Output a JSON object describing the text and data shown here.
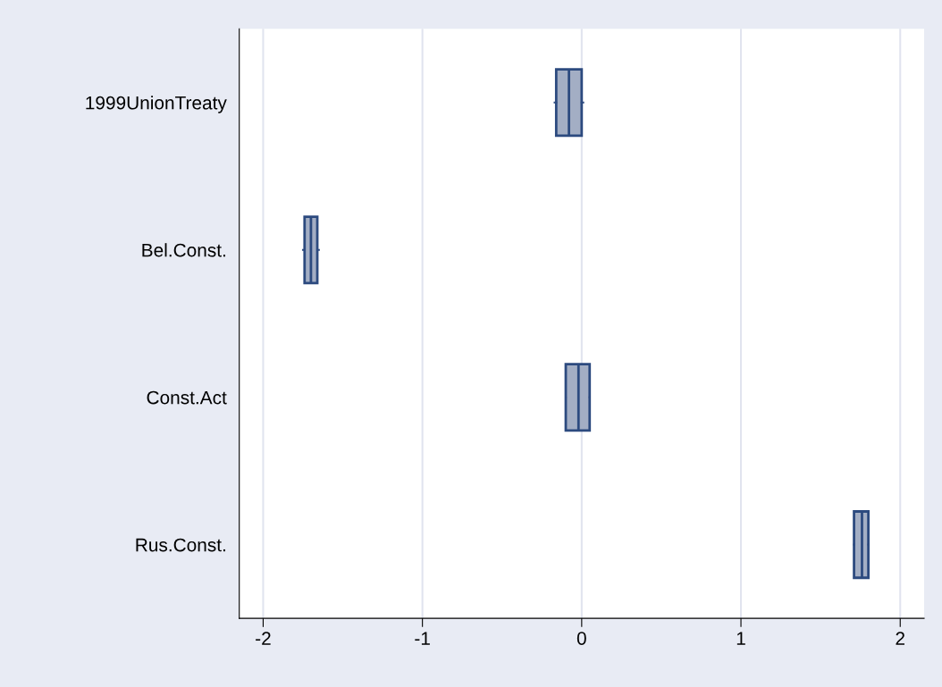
{
  "chart_data": {
    "type": "box",
    "orientation": "horizontal",
    "categories": [
      "1999UnionTreaty",
      "Bel.Const.",
      "Const.Act",
      "Rus.Const."
    ],
    "boxes": [
      {
        "low": -0.17,
        "q1": -0.16,
        "median": -0.08,
        "q3": 0.0,
        "high": 0.01
      },
      {
        "low": -1.75,
        "q1": -1.74,
        "median": -1.7,
        "q3": -1.66,
        "high": -1.65
      },
      {
        "low": -0.1,
        "q1": -0.1,
        "median": -0.02,
        "q3": 0.05,
        "high": 0.05
      },
      {
        "low": 1.71,
        "q1": 1.71,
        "median": 1.76,
        "q3": 1.8,
        "high": 1.8
      }
    ],
    "color": "#a3aec4",
    "xlim": [
      -2.15,
      2.15
    ],
    "xticks": [
      -2,
      -1,
      0,
      1,
      2
    ],
    "grid": "x"
  }
}
